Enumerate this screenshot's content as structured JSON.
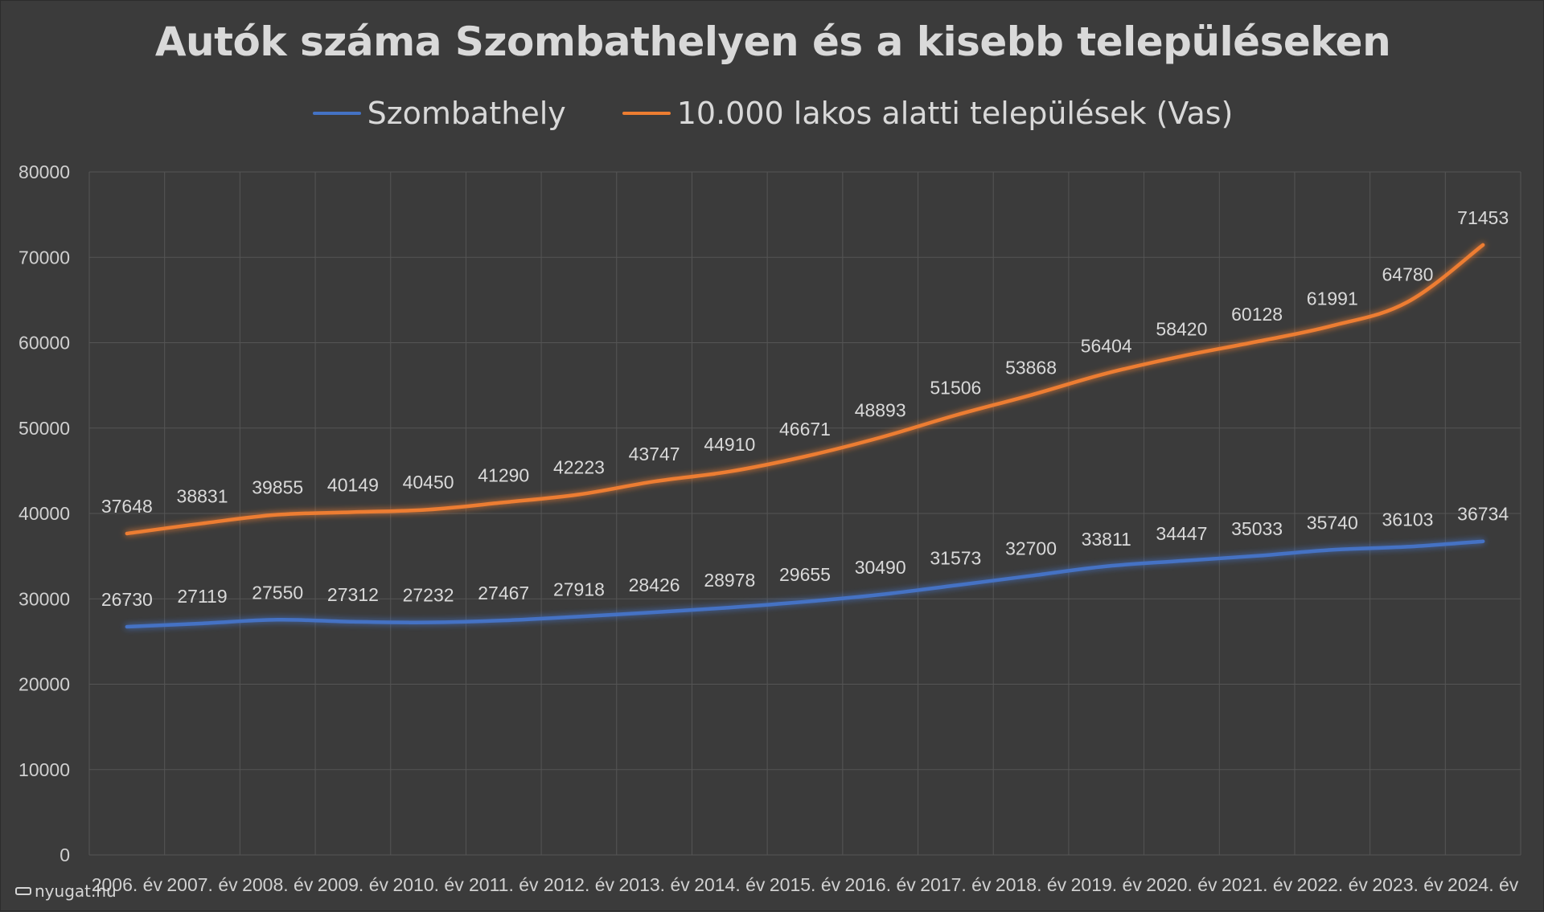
{
  "chart_data": {
    "type": "line",
    "title": "Autók száma Szombathelyen és a kisebb településeken",
    "categories": [
      "2006. év",
      "2007. év",
      "2008. év",
      "2009. év",
      "2010. év",
      "2011. év",
      "2012. év",
      "2013. év",
      "2014. év",
      "2015. év",
      "2016. év",
      "2017. év",
      "2018. év",
      "2019. év",
      "2020. év",
      "2021. év",
      "2022. év",
      "2023. év",
      "2024. év"
    ],
    "series": [
      {
        "name": "Szombathely",
        "color": "#4472c4",
        "values": [
          26730,
          27119,
          27550,
          27312,
          27232,
          27467,
          27918,
          28426,
          28978,
          29655,
          30490,
          31573,
          32700,
          33811,
          34447,
          35033,
          35740,
          36103,
          36734
        ]
      },
      {
        "name": "10.000 lakos alatti települések (Vas)",
        "color": "#ed7d31",
        "values": [
          37648,
          38831,
          39855,
          40149,
          40450,
          41290,
          42223,
          43747,
          44910,
          46671,
          48893,
          51506,
          53868,
          56404,
          58420,
          60128,
          61991,
          64780,
          71453
        ]
      }
    ],
    "yticks": [
      "0",
      "10000",
      "20000",
      "30000",
      "40000",
      "50000",
      "60000",
      "70000",
      "80000"
    ],
    "ylim": [
      0,
      80000
    ],
    "grid": true,
    "legend_position": "top",
    "data_labels": true
  },
  "watermark": "nyugat.hu"
}
